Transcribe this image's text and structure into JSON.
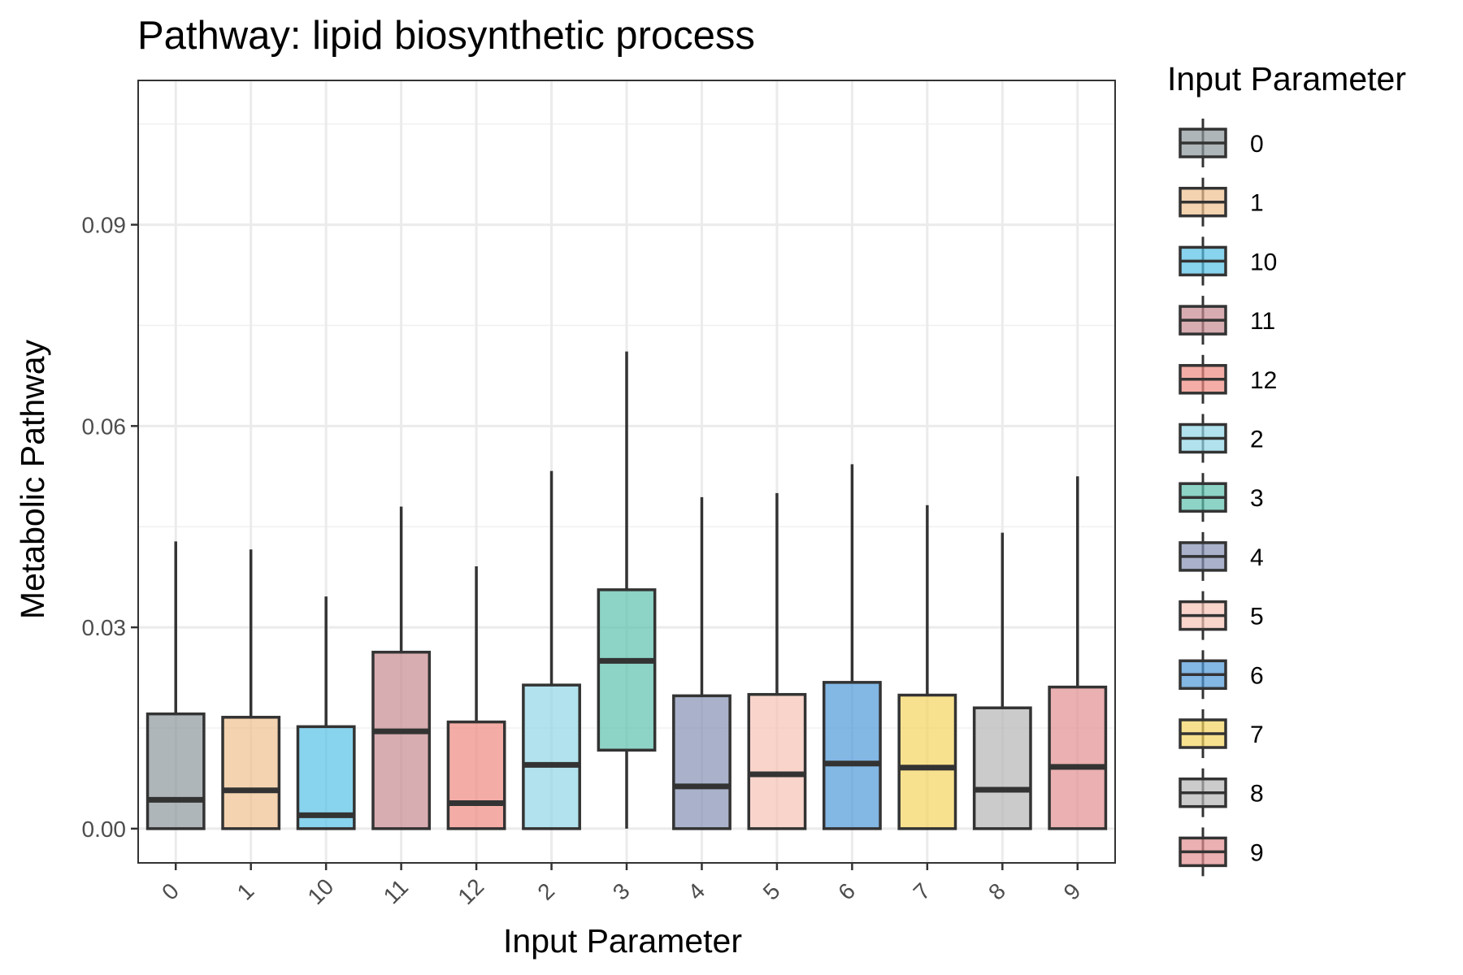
{
  "chart_data": {
    "type": "box",
    "title": "Pathway: lipid biosynthetic process",
    "xlabel": "Input Parameter",
    "ylabel": "Metabolic Pathway",
    "ylim": [
      -0.0051,
      0.1115
    ],
    "yticks": [
      0.0,
      0.03,
      0.06,
      0.09
    ],
    "ytick_labels": [
      "0.00",
      "0.03",
      "0.06",
      "0.09"
    ],
    "grid": true,
    "legend_title": "Input Parameter",
    "legend_position": "right",
    "categories": [
      "0",
      "1",
      "10",
      "11",
      "12",
      "2",
      "3",
      "4",
      "5",
      "6",
      "7",
      "8",
      "9"
    ],
    "series": [
      {
        "name": "0",
        "color": "#8D979B",
        "whisker_low": 0.0,
        "q1": 0.0,
        "median": 0.0043,
        "q3": 0.0171,
        "whisker_high": 0.0428
      },
      {
        "name": "1",
        "color": "#EFC08E",
        "whisker_low": 0.0,
        "q1": 0.0,
        "median": 0.0057,
        "q3": 0.0166,
        "whisker_high": 0.0416
      },
      {
        "name": "10",
        "color": "#56C1E6",
        "whisker_low": 0.0,
        "q1": 0.0,
        "median": 0.002,
        "q3": 0.0152,
        "whisker_high": 0.0346
      },
      {
        "name": "11",
        "color": "#C88A91",
        "whisker_low": 0.0,
        "q1": 0.0,
        "median": 0.0145,
        "q3": 0.0263,
        "whisker_high": 0.048
      },
      {
        "name": "12",
        "color": "#F08A80",
        "whisker_low": 0.0,
        "q1": 0.0,
        "median": 0.0038,
        "q3": 0.0159,
        "whisker_high": 0.0391
      },
      {
        "name": "2",
        "color": "#90D5E5",
        "whisker_low": 0.0,
        "q1": 0.0,
        "median": 0.0095,
        "q3": 0.0214,
        "whisker_high": 0.0533
      },
      {
        "name": "3",
        "color": "#5CC1AE",
        "whisker_low": 0.0,
        "q1": 0.0117,
        "median": 0.025,
        "q3": 0.0356,
        "whisker_high": 0.0711
      },
      {
        "name": "4",
        "color": "#8491B4",
        "whisker_low": 0.0,
        "q1": 0.0,
        "median": 0.0063,
        "q3": 0.0198,
        "whisker_high": 0.0494
      },
      {
        "name": "5",
        "color": "#F5C2B5",
        "whisker_low": 0.0,
        "q1": 0.0,
        "median": 0.0081,
        "q3": 0.02,
        "whisker_high": 0.05
      },
      {
        "name": "6",
        "color": "#4E98D8",
        "whisker_low": 0.0,
        "q1": 0.0,
        "median": 0.0097,
        "q3": 0.0218,
        "whisker_high": 0.0543
      },
      {
        "name": "7",
        "color": "#F5D45E",
        "whisker_low": 0.0,
        "q1": 0.0,
        "median": 0.0091,
        "q3": 0.0199,
        "whisker_high": 0.0482
      },
      {
        "name": "8",
        "color": "#B5B5B5",
        "whisker_low": 0.0,
        "q1": 0.0,
        "median": 0.0058,
        "q3": 0.018,
        "whisker_high": 0.0441
      },
      {
        "name": "9",
        "color": "#E28E90",
        "whisker_low": 0.0,
        "q1": 0.0,
        "median": 0.0092,
        "q3": 0.0211,
        "whisker_high": 0.0525
      }
    ]
  }
}
